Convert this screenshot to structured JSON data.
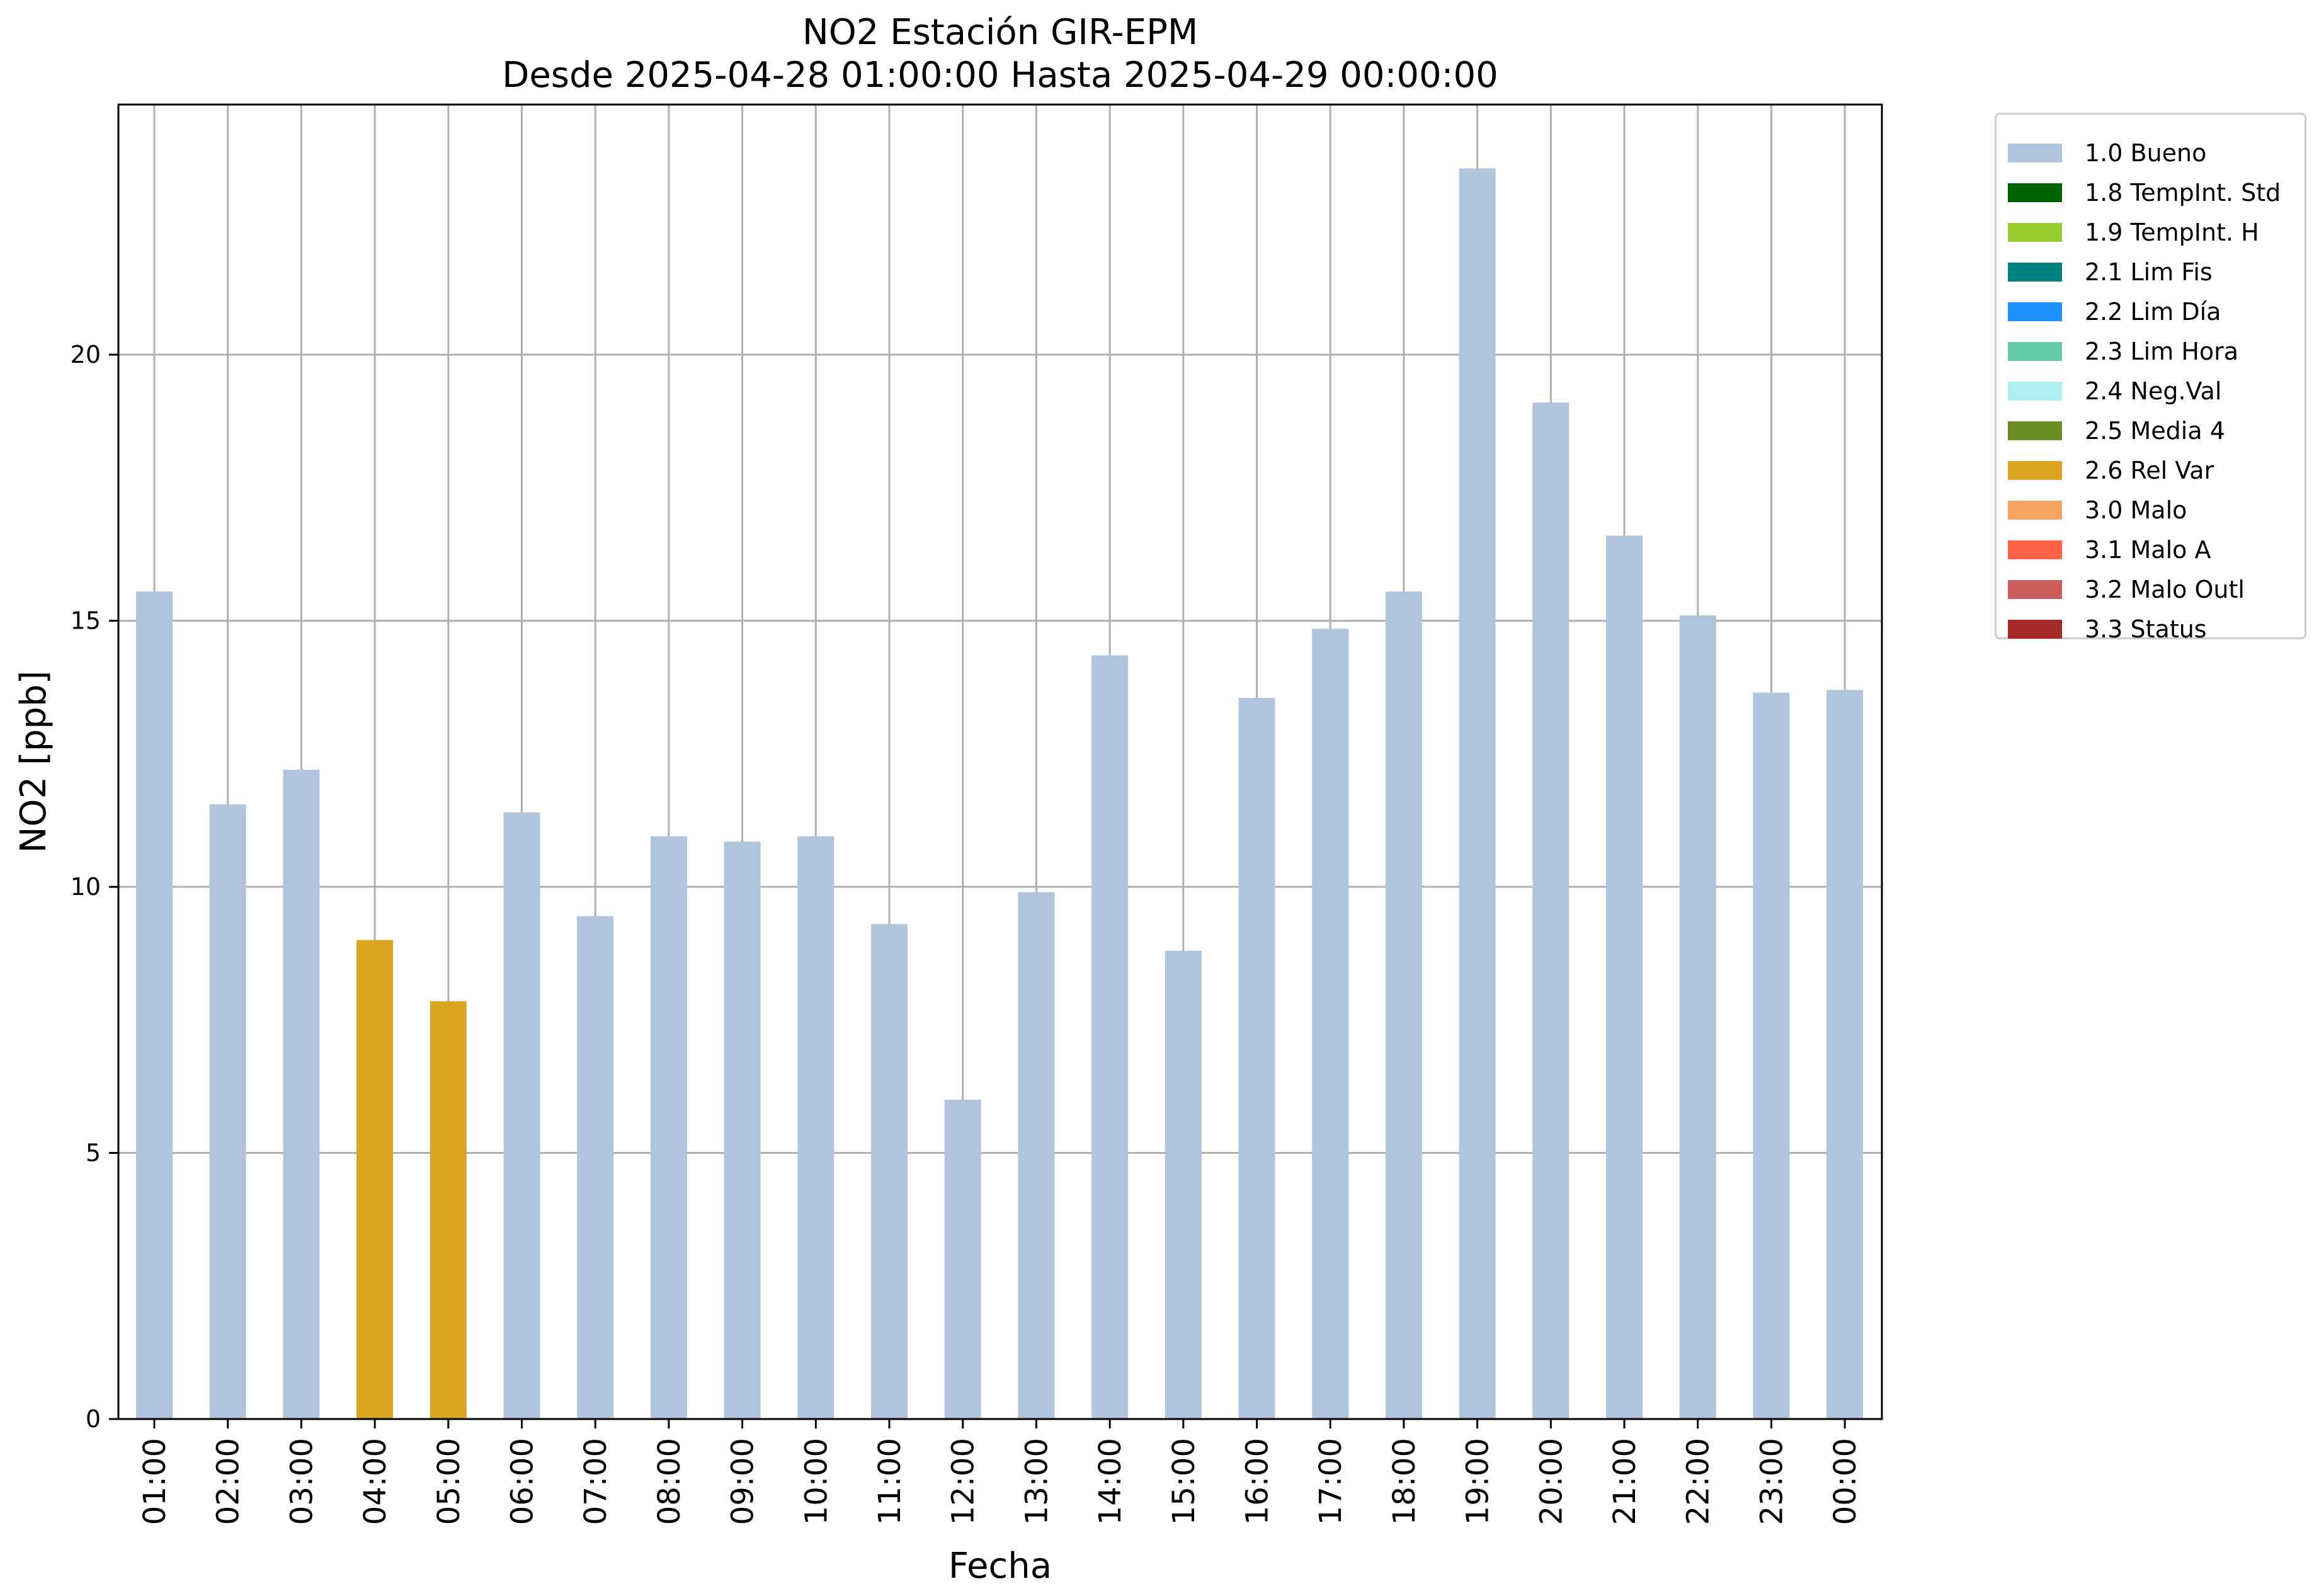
{
  "chart_data": {
    "type": "bar",
    "title": "NO2 Estación GIR-EPM",
    "subtitle": "Desde 2025-04-28 01:00:00 Hasta 2025-04-29 00:00:00",
    "xlabel": "Fecha",
    "ylabel": "NO2 [ppb]",
    "ylim": [
      0,
      24.7
    ],
    "yticks": [
      0,
      5,
      10,
      15,
      20
    ],
    "grid": true,
    "legend_position": "outside top-right",
    "categories": [
      "01:00",
      "02:00",
      "03:00",
      "04:00",
      "05:00",
      "06:00",
      "07:00",
      "08:00",
      "09:00",
      "10:00",
      "11:00",
      "12:00",
      "13:00",
      "14:00",
      "15:00",
      "16:00",
      "17:00",
      "18:00",
      "19:00",
      "20:00",
      "21:00",
      "22:00",
      "23:00",
      "00:00"
    ],
    "values": [
      15.55,
      11.55,
      12.2,
      9.0,
      7.85,
      11.4,
      9.45,
      10.95,
      10.85,
      10.95,
      9.3,
      6.0,
      9.9,
      14.35,
      8.8,
      13.55,
      14.85,
      15.55,
      23.5,
      19.1,
      16.6,
      15.1,
      13.65,
      13.7
    ],
    "bar_flags": [
      "1.0",
      "1.0",
      "1.0",
      "2.6",
      "2.6",
      "1.0",
      "1.0",
      "1.0",
      "1.0",
      "1.0",
      "1.0",
      "1.0",
      "1.0",
      "1.0",
      "1.0",
      "1.0",
      "1.0",
      "1.0",
      "1.0",
      "1.0",
      "1.0",
      "1.0",
      "1.0",
      "1.0"
    ],
    "legend": [
      {
        "code": "1.0",
        "label": "1.0 Bueno",
        "color": "#b0c4de"
      },
      {
        "code": "1.8",
        "label": "1.8 TempInt. Std",
        "color": "#006400"
      },
      {
        "code": "1.9",
        "label": "1.9 TempInt. H",
        "color": "#9acd32"
      },
      {
        "code": "2.1",
        "label": "2.1 Lim Fis",
        "color": "#008080"
      },
      {
        "code": "2.2",
        "label": "2.2 Lim Día",
        "color": "#1e90ff"
      },
      {
        "code": "2.3",
        "label": "2.3 Lim Hora",
        "color": "#66cdaa"
      },
      {
        "code": "2.4",
        "label": "2.4 Neg.Val",
        "color": "#afeeee"
      },
      {
        "code": "2.5",
        "label": "2.5 Media 4",
        "color": "#6b8e23"
      },
      {
        "code": "2.6",
        "label": "2.6 Rel Var",
        "color": "#daa520"
      },
      {
        "code": "3.0",
        "label": "3.0 Malo",
        "color": "#f4a460"
      },
      {
        "code": "3.1",
        "label": "3.1 Malo A",
        "color": "#ff6347"
      },
      {
        "code": "3.2",
        "label": "3.2 Malo Outl",
        "color": "#cd5c5c"
      },
      {
        "code": "3.3",
        "label": "3.3 Status",
        "color": "#a52a2a"
      }
    ]
  }
}
